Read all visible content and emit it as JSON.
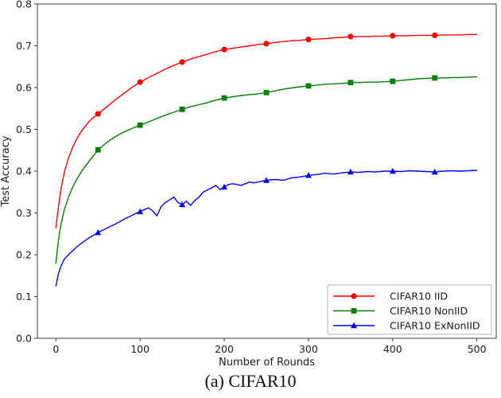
{
  "figure": {
    "caption": "(a) CIFAR10"
  },
  "chart_data": {
    "type": "line",
    "title": "",
    "xlabel": "Number of Rounds",
    "ylabel": "Test Accuracy",
    "xlim": [
      -22,
      523
    ],
    "ylim": [
      0.0,
      0.8
    ],
    "xticks": [
      0,
      100,
      200,
      300,
      400,
      500
    ],
    "yticks": [
      0.0,
      0.1,
      0.2,
      0.3,
      0.4,
      0.5,
      0.6,
      0.7,
      0.8
    ],
    "grid": false,
    "legend_position": "lower right",
    "axis_color": "#3c3c3c",
    "marker_x": [
      50,
      100,
      150,
      200,
      250,
      300,
      350,
      400,
      450
    ],
    "series": [
      {
        "name": "CIFAR10 IID",
        "color": "#ff0000",
        "marker": "circle",
        "x": [
          0,
          3,
          6,
          10,
          15,
          20,
          25,
          30,
          35,
          40,
          45,
          50,
          60,
          70,
          80,
          90,
          100,
          110,
          120,
          130,
          140,
          150,
          160,
          170,
          180,
          190,
          200,
          210,
          220,
          230,
          240,
          250,
          260,
          270,
          280,
          290,
          300,
          310,
          320,
          330,
          340,
          350,
          360,
          370,
          380,
          390,
          400,
          410,
          420,
          430,
          440,
          450,
          460,
          470,
          480,
          490,
          500
        ],
        "y": [
          0.265,
          0.315,
          0.356,
          0.398,
          0.432,
          0.458,
          0.478,
          0.495,
          0.508,
          0.52,
          0.529,
          0.537,
          0.553,
          0.57,
          0.585,
          0.6,
          0.613,
          0.624,
          0.634,
          0.644,
          0.653,
          0.661,
          0.668,
          0.674,
          0.68,
          0.686,
          0.691,
          0.694,
          0.697,
          0.7,
          0.703,
          0.705,
          0.708,
          0.71,
          0.712,
          0.713,
          0.715,
          0.716,
          0.717,
          0.719,
          0.72,
          0.722,
          0.722,
          0.722,
          0.723,
          0.723,
          0.724,
          0.724,
          0.724,
          0.725,
          0.725,
          0.725,
          0.726,
          0.726,
          0.726,
          0.727,
          0.727
        ]
      },
      {
        "name": "CIFAR10 NonIID",
        "color": "#008000",
        "marker": "square",
        "x": [
          0,
          3,
          6,
          10,
          15,
          20,
          25,
          30,
          35,
          40,
          45,
          50,
          60,
          70,
          80,
          90,
          100,
          110,
          120,
          130,
          140,
          150,
          160,
          170,
          180,
          190,
          200,
          210,
          220,
          230,
          240,
          250,
          260,
          270,
          280,
          290,
          300,
          310,
          320,
          330,
          340,
          350,
          360,
          370,
          380,
          390,
          400,
          410,
          420,
          430,
          440,
          450,
          460,
          470,
          480,
          490,
          500
        ],
        "y": [
          0.18,
          0.235,
          0.272,
          0.308,
          0.338,
          0.362,
          0.382,
          0.398,
          0.412,
          0.425,
          0.438,
          0.451,
          0.468,
          0.482,
          0.493,
          0.502,
          0.51,
          0.518,
          0.526,
          0.534,
          0.541,
          0.548,
          0.554,
          0.559,
          0.564,
          0.57,
          0.575,
          0.578,
          0.581,
          0.583,
          0.585,
          0.588,
          0.592,
          0.596,
          0.599,
          0.602,
          0.604,
          0.606,
          0.608,
          0.609,
          0.61,
          0.612,
          0.612,
          0.613,
          0.613,
          0.614,
          0.615,
          0.617,
          0.619,
          0.621,
          0.622,
          0.623,
          0.623,
          0.624,
          0.624,
          0.625,
          0.626
        ]
      },
      {
        "name": "CIFAR10 ExNonIID",
        "color": "#0000ff",
        "marker": "triangle",
        "x": [
          0,
          3,
          6,
          10,
          15,
          20,
          25,
          30,
          35,
          40,
          45,
          50,
          55,
          60,
          65,
          70,
          75,
          80,
          85,
          90,
          95,
          100,
          105,
          110,
          115,
          120,
          125,
          130,
          135,
          140,
          145,
          150,
          155,
          160,
          165,
          170,
          175,
          180,
          185,
          190,
          195,
          200,
          205,
          210,
          215,
          220,
          225,
          230,
          235,
          240,
          245,
          250,
          255,
          260,
          265,
          270,
          275,
          280,
          285,
          290,
          295,
          300,
          310,
          320,
          330,
          340,
          350,
          360,
          370,
          380,
          390,
          400,
          410,
          420,
          430,
          440,
          450,
          460,
          470,
          480,
          490,
          500
        ],
        "y": [
          0.125,
          0.155,
          0.172,
          0.19,
          0.2,
          0.21,
          0.219,
          0.227,
          0.234,
          0.241,
          0.247,
          0.253,
          0.258,
          0.263,
          0.268,
          0.273,
          0.278,
          0.284,
          0.289,
          0.294,
          0.299,
          0.303,
          0.308,
          0.312,
          0.305,
          0.293,
          0.315,
          0.325,
          0.331,
          0.338,
          0.325,
          0.32,
          0.328,
          0.318,
          0.33,
          0.338,
          0.35,
          0.355,
          0.36,
          0.366,
          0.356,
          0.362,
          0.368,
          0.37,
          0.368,
          0.366,
          0.37,
          0.374,
          0.372,
          0.374,
          0.376,
          0.378,
          0.379,
          0.38,
          0.379,
          0.378,
          0.381,
          0.384,
          0.385,
          0.386,
          0.388,
          0.39,
          0.392,
          0.395,
          0.393,
          0.396,
          0.398,
          0.397,
          0.399,
          0.398,
          0.4,
          0.4,
          0.399,
          0.401,
          0.4,
          0.399,
          0.398,
          0.4,
          0.401,
          0.4,
          0.401,
          0.402
        ]
      }
    ]
  }
}
